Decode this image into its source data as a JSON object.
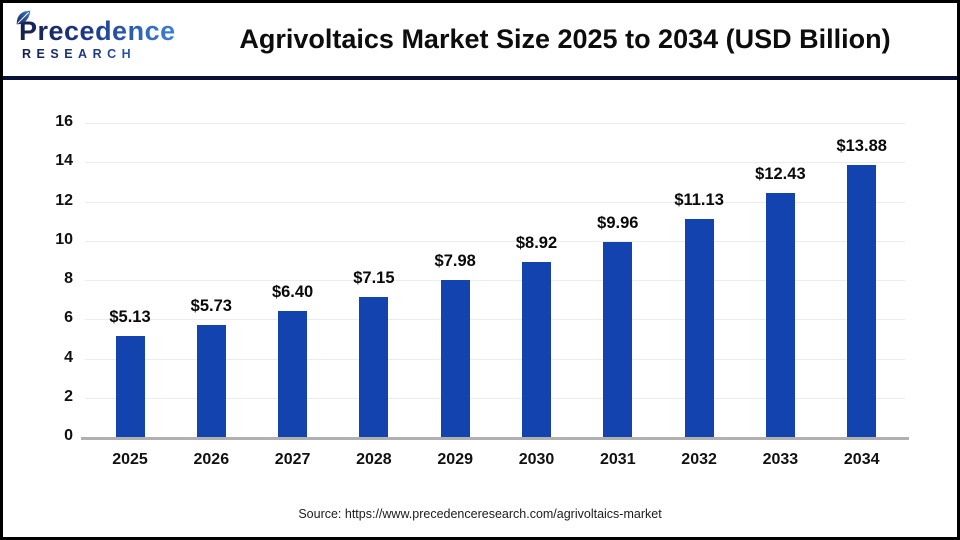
{
  "header": {
    "logo": {
      "primary": "Precedence",
      "secondary": "RESEARCH"
    },
    "title": "Agrivoltaics Market Size 2025 to 2034 (USD Billion)"
  },
  "chart_data": {
    "type": "bar",
    "title": "Agrivoltaics Market Size 2025 to 2034 (USD Billion)",
    "unit": "USD Billion",
    "categories": [
      "2025",
      "2026",
      "2027",
      "2028",
      "2029",
      "2030",
      "2031",
      "2032",
      "2033",
      "2034"
    ],
    "values": [
      5.13,
      5.73,
      6.4,
      7.15,
      7.98,
      8.92,
      9.96,
      11.13,
      12.43,
      13.88
    ],
    "value_labels": [
      "$5.13",
      "$5.73",
      "$6.40",
      "$7.15",
      "$7.98",
      "$8.92",
      "$9.96",
      "$11.13",
      "$12.43",
      "$13.88"
    ],
    "xlabel": "",
    "ylabel": "",
    "ylim": [
      0,
      16
    ],
    "ytick_step": 2,
    "yticks": [
      0,
      2,
      4,
      6,
      8,
      10,
      12,
      14,
      16
    ],
    "grid": true,
    "legend_position": "none",
    "bar_color": "#1343ae"
  },
  "footer": {
    "source": "Source: https://www.precedenceresearch.com/agrivoltaics-market"
  },
  "colors": {
    "bar": "#1343ae",
    "header_rule": "#0b1238",
    "gridline": "#ececec",
    "axis_line": "#b0b0b0",
    "title_text": "#0d0d0d",
    "logo_navy": "#131f4e",
    "logo_blue": "#3d82d8"
  }
}
